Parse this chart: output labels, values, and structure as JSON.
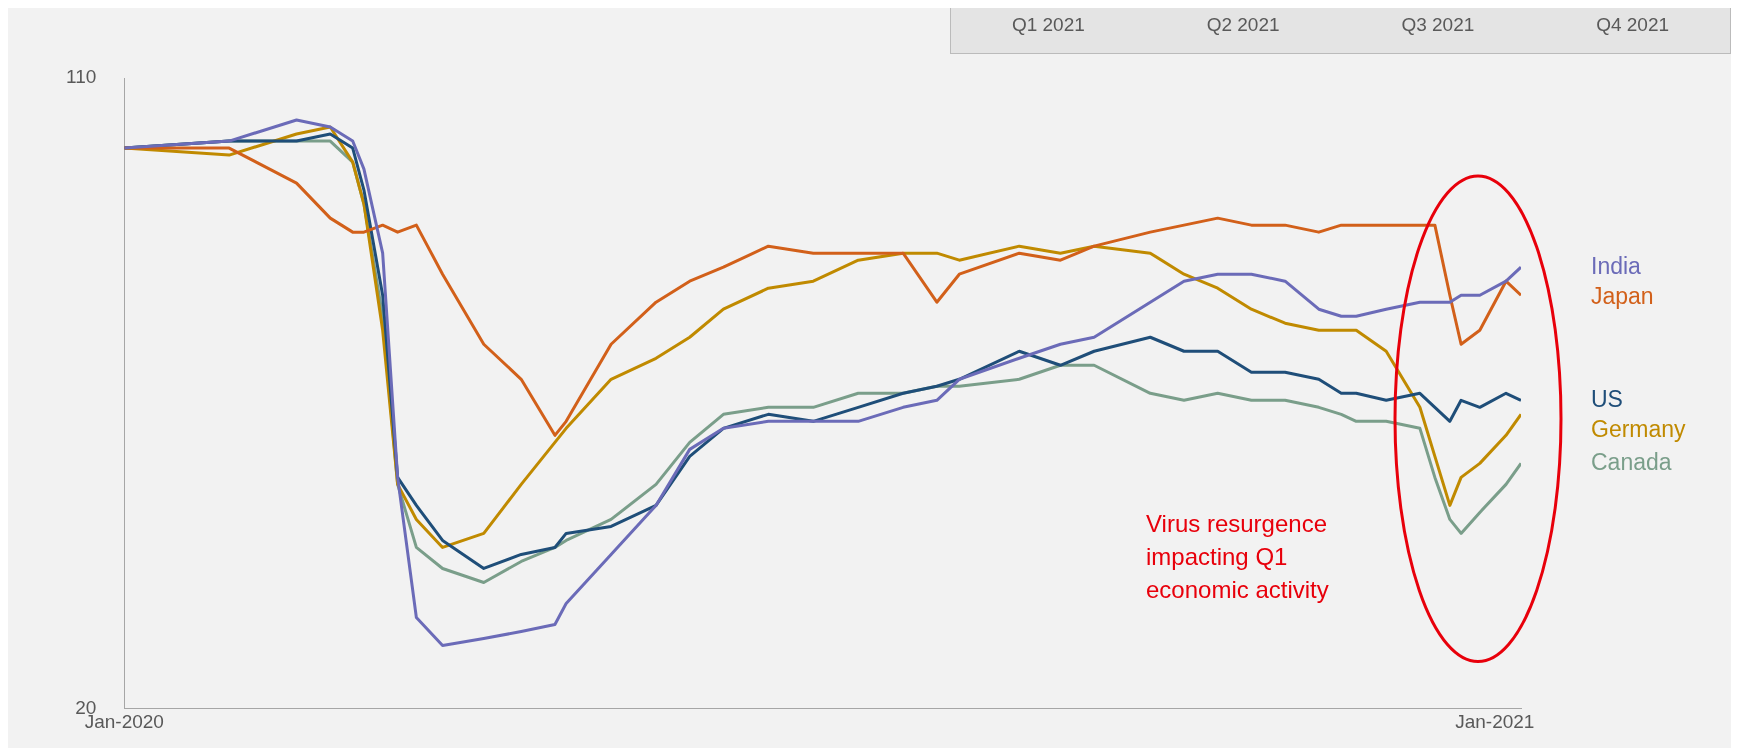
{
  "chart_data": [
    {
      "type": "other",
      "annotations": [
        "Q1 2021",
        "Q2 2021",
        "Q3 2021",
        "Q4 2021"
      ]
    },
    {
      "type": "line",
      "x": [
        "2020-01-01",
        "2020-01-29",
        "2020-02-16",
        "2020-02-25",
        "2020-03-02",
        "2020-03-05",
        "2020-03-10",
        "2020-03-14",
        "2020-03-19",
        "2020-03-26",
        "2020-04-06",
        "2020-04-16",
        "2020-04-25",
        "2020-04-28",
        "2020-05-10",
        "2020-05-22",
        "2020-05-31",
        "2020-06-09",
        "2020-06-21",
        "2020-07-03",
        "2020-07-15",
        "2020-07-27",
        "2020-08-05",
        "2020-08-11",
        "2020-08-27",
        "2020-09-07",
        "2020-09-16",
        "2020-10-01",
        "2020-10-10",
        "2020-10-19",
        "2020-10-28",
        "2020-11-06",
        "2020-11-15",
        "2020-11-21",
        "2020-11-25",
        "2020-12-03",
        "2020-12-12",
        "2020-12-16",
        "2020-12-20",
        "2020-12-23",
        "2020-12-28",
        "2021-01-04",
        "2021-01-08"
      ],
      "series": [
        {
          "name": "India",
          "color": "#6b6bb8",
          "values": [
            100,
            101,
            104,
            103,
            101,
            97,
            85,
            53,
            33,
            29,
            30,
            31,
            32,
            35,
            42,
            49,
            57,
            60,
            61,
            61,
            61,
            63,
            64,
            67,
            70,
            72,
            73,
            78,
            81,
            82,
            82,
            81,
            77,
            76,
            76,
            77,
            78,
            78,
            78,
            79,
            79,
            81,
            83
          ]
        },
        {
          "name": "Japan",
          "color": "#d2601a",
          "values": [
            100,
            100,
            95,
            90,
            88,
            88,
            89,
            88,
            89,
            82,
            72,
            67,
            59,
            61,
            72,
            78,
            81,
            83,
            86,
            85,
            85,
            85,
            78,
            82,
            85,
            84,
            86,
            88,
            89,
            90,
            89,
            89,
            88,
            89,
            89,
            89,
            89,
            89,
            79,
            72,
            74,
            81,
            79
          ]
        },
        {
          "name": "US",
          "color": "#1f4e79",
          "values": [
            100,
            101,
            101,
            102,
            100,
            94,
            79,
            53,
            49,
            44,
            40,
            42,
            43,
            45,
            46,
            49,
            56,
            60,
            62,
            61,
            63,
            65,
            66,
            67,
            71,
            69,
            71,
            73,
            71,
            71,
            68,
            68,
            67,
            65,
            65,
            64,
            65,
            63,
            61,
            64,
            63,
            65,
            64
          ]
        },
        {
          "name": "Germany",
          "color": "#c08a00",
          "values": [
            100,
            99,
            102,
            103,
            98,
            92,
            74,
            52,
            47,
            43,
            45,
            52,
            58,
            60,
            67,
            70,
            73,
            77,
            80,
            81,
            84,
            85,
            85,
            84,
            86,
            85,
            86,
            85,
            82,
            80,
            77,
            75,
            74,
            74,
            74,
            71,
            63,
            56,
            49,
            53,
            55,
            59,
            62
          ]
        },
        {
          "name": "Canada",
          "color": "#7a9e8a",
          "values": [
            100,
            101,
            101,
            101,
            98,
            92,
            76,
            52,
            43,
            40,
            38,
            41,
            43,
            44,
            47,
            52,
            58,
            62,
            63,
            63,
            65,
            65,
            66,
            66,
            67,
            69,
            69,
            65,
            64,
            65,
            64,
            64,
            63,
            62,
            61,
            61,
            60,
            53,
            47,
            45,
            48,
            52,
            55
          ]
        }
      ],
      "xlim": [
        "2020-01-01",
        "2021-01-08"
      ],
      "xticks": [
        {
          "value": "2020-01-01",
          "label": "Jan-2020"
        },
        {
          "value": "2021-01-01",
          "label": "Jan-2021"
        }
      ],
      "ylim": [
        20,
        110
      ],
      "yticks": [
        20,
        110
      ],
      "legend": "right",
      "annotations": [
        "Virus resurgence impacting Q1 economic activity"
      ]
    }
  ]
}
